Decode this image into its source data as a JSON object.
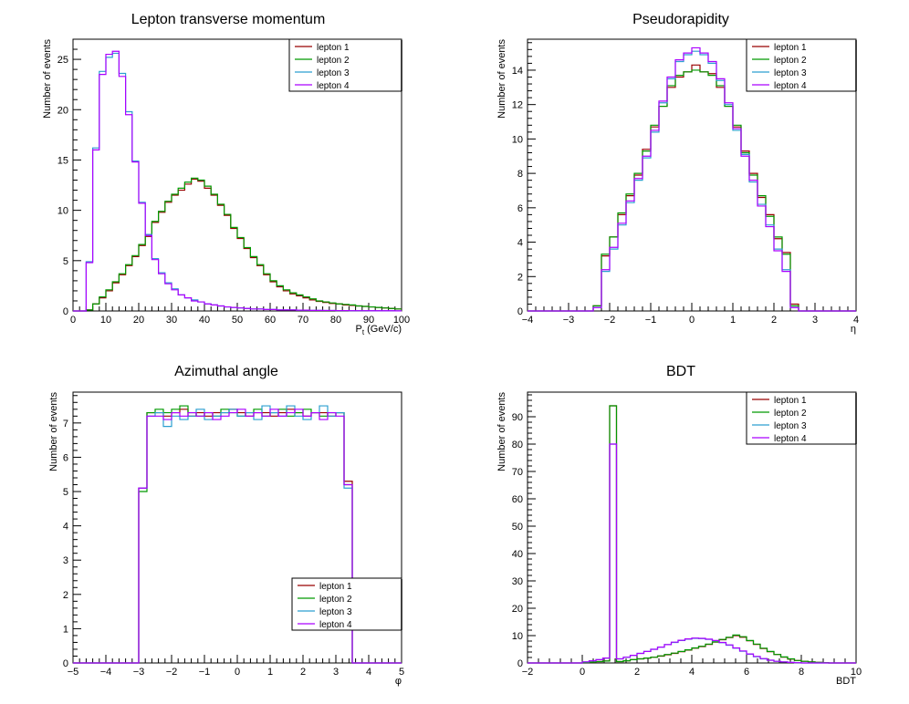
{
  "colors": {
    "lepton_1": "#990000",
    "lepton_2": "#009900",
    "lepton_3": "#2c9fd0",
    "lepton_4": "#aa00ff"
  },
  "chart_data": [
    {
      "type": "histogram",
      "title": "Lepton transverse momentum",
      "ylabel": "Number of events",
      "xlabel_main": "P",
      "xlabel_sub": "t",
      "xlabel_unit": " (GeV/c)",
      "xlim": [
        0,
        100
      ],
      "ylim": [
        0,
        27
      ],
      "xticks": [
        "0",
        "10",
        "20",
        "30",
        "40",
        "50",
        "60",
        "70",
        "80",
        "90",
        "100"
      ],
      "yticks": [
        "0",
        "5",
        "10",
        "15",
        "20",
        "25"
      ],
      "bin_edges_start": 0,
      "bin_width": 2,
      "legend": {
        "position": "top-right",
        "entries": [
          "lepton 1",
          "lepton 2",
          "lepton 3",
          "lepton 4"
        ]
      },
      "series": [
        {
          "name": "lepton 1",
          "values": [
            0,
            0,
            0.1,
            0.7,
            1.3,
            2.0,
            2.8,
            3.6,
            4.5,
            5.4,
            6.5,
            7.4,
            8.8,
            9.8,
            10.8,
            11.5,
            12.0,
            12.6,
            13.1,
            12.9,
            12.2,
            11.5,
            10.5,
            9.5,
            8.2,
            7.2,
            6.2,
            5.3,
            4.5,
            3.6,
            2.9,
            2.4,
            2.0,
            1.7,
            1.5,
            1.3,
            1.1,
            0.95,
            0.85,
            0.75,
            0.7,
            0.6,
            0.55,
            0.5,
            0.45,
            0.4,
            0.35,
            0.3,
            0.25,
            0.2
          ]
        },
        {
          "name": "lepton 2",
          "values": [
            0,
            0,
            0.1,
            0.7,
            1.4,
            2.1,
            2.9,
            3.7,
            4.6,
            5.5,
            6.6,
            7.6,
            8.9,
            9.9,
            10.9,
            11.6,
            12.2,
            12.8,
            13.2,
            13.0,
            12.4,
            11.6,
            10.6,
            9.6,
            8.3,
            7.3,
            6.3,
            5.4,
            4.6,
            3.7,
            3.0,
            2.5,
            2.1,
            1.8,
            1.6,
            1.4,
            1.2,
            1.0,
            0.9,
            0.8,
            0.7,
            0.65,
            0.6,
            0.5,
            0.45,
            0.4,
            0.35,
            0.3,
            0.25,
            0.2
          ]
        },
        {
          "name": "lepton 3",
          "values": [
            0,
            0,
            4.9,
            16.2,
            23.8,
            25.2,
            25.6,
            23.6,
            19.8,
            14.9,
            10.8,
            7.6,
            5.2,
            3.8,
            2.8,
            2.2,
            1.6,
            1.3,
            1.1,
            0.9,
            0.7,
            0.6,
            0.5,
            0.4,
            0.35,
            0.3,
            0.25,
            0.2,
            0.2,
            0.15,
            0.15,
            0.1,
            0.1,
            0.1,
            0.08,
            0.08,
            0.06,
            0.06,
            0.05,
            0.05,
            0.04,
            0.04,
            0.03,
            0.03,
            0.03,
            0.02,
            0.02,
            0.02,
            0.02,
            0.01
          ]
        },
        {
          "name": "lepton 4",
          "values": [
            0,
            0,
            4.8,
            16.0,
            23.5,
            25.5,
            25.8,
            23.3,
            19.5,
            14.8,
            10.7,
            7.5,
            5.1,
            3.7,
            2.7,
            2.1,
            1.6,
            1.3,
            1.0,
            0.9,
            0.7,
            0.6,
            0.5,
            0.4,
            0.35,
            0.3,
            0.25,
            0.2,
            0.2,
            0.15,
            0.15,
            0.1,
            0.1,
            0.1,
            0.08,
            0.08,
            0.06,
            0.06,
            0.05,
            0.05,
            0.04,
            0.04,
            0.03,
            0.03,
            0.03,
            0.02,
            0.02,
            0.02,
            0.02,
            0.01
          ]
        }
      ]
    },
    {
      "type": "histogram",
      "title": "Pseudorapidity",
      "ylabel": "Number of events",
      "xlabel_main": "η",
      "xlabel_sub": "",
      "xlabel_unit": "",
      "xlim": [
        -4,
        4
      ],
      "ylim": [
        0,
        15.8
      ],
      "xticks": [
        "−4",
        "−3",
        "−2",
        "−1",
        "0",
        "1",
        "2",
        "3",
        "4"
      ],
      "yticks": [
        "0",
        "2",
        "4",
        "6",
        "8",
        "10",
        "12",
        "14"
      ],
      "bin_edges_start": -4,
      "bin_width": 0.2,
      "legend": {
        "position": "top-right",
        "entries": [
          "lepton 1",
          "lepton 2",
          "lepton 3",
          "lepton 4"
        ]
      },
      "series": [
        {
          "name": "lepton 1",
          "values": [
            0,
            0,
            0,
            0,
            0,
            0,
            0,
            0,
            0.3,
            3.2,
            4.3,
            5.6,
            6.7,
            7.9,
            9.4,
            10.7,
            11.9,
            13.0,
            13.6,
            13.9,
            14.3,
            13.9,
            13.8,
            13.0,
            11.9,
            10.7,
            9.3,
            8.0,
            6.6,
            5.6,
            4.2,
            3.4,
            0.4,
            0,
            0,
            0,
            0,
            0,
            0,
            0
          ]
        },
        {
          "name": "lepton 2",
          "values": [
            0,
            0,
            0,
            0,
            0,
            0,
            0,
            0,
            0.3,
            3.3,
            4.3,
            5.7,
            6.8,
            8.0,
            9.3,
            10.8,
            11.9,
            13.1,
            13.7,
            13.9,
            14.0,
            13.9,
            13.7,
            13.1,
            11.9,
            10.8,
            9.2,
            7.9,
            6.7,
            5.5,
            4.3,
            3.3,
            0.3,
            0,
            0,
            0,
            0,
            0,
            0,
            0
          ]
        },
        {
          "name": "lepton 3",
          "values": [
            0,
            0,
            0,
            0,
            0,
            0,
            0,
            0,
            0.2,
            2.3,
            3.6,
            5.0,
            6.3,
            7.6,
            8.9,
            10.4,
            12.1,
            13.5,
            14.5,
            14.9,
            15.1,
            14.9,
            14.4,
            13.4,
            12.0,
            10.5,
            9.1,
            7.5,
            6.2,
            5.0,
            3.6,
            2.4,
            0.2,
            0,
            0,
            0,
            0,
            0,
            0,
            0
          ]
        },
        {
          "name": "lepton 4",
          "values": [
            0,
            0,
            0,
            0,
            0,
            0,
            0,
            0,
            0.2,
            2.4,
            3.7,
            5.1,
            6.4,
            7.7,
            9.0,
            10.5,
            12.2,
            13.6,
            14.6,
            15.0,
            15.3,
            15.0,
            14.5,
            13.5,
            12.1,
            10.6,
            9.0,
            7.6,
            6.1,
            4.9,
            3.5,
            2.3,
            0.2,
            0,
            0,
            0,
            0,
            0,
            0,
            0
          ]
        }
      ]
    },
    {
      "type": "histogram",
      "title": "Azimuthal angle",
      "ylabel": "Number of events",
      "xlabel_main": "φ",
      "xlabel_sub": "",
      "xlabel_unit": "",
      "xlim": [
        -5,
        5
      ],
      "ylim": [
        0,
        7.9
      ],
      "xticks": [
        "−5",
        "−4",
        "−3",
        "−2",
        "−1",
        "0",
        "1",
        "2",
        "3",
        "4",
        "5"
      ],
      "yticks": [
        "0",
        "1",
        "2",
        "3",
        "4",
        "5",
        "6",
        "7"
      ],
      "bin_edges_start": -5,
      "bin_width": 0.25,
      "legend": {
        "position": "bottom-right",
        "entries": [
          "lepton 1",
          "lepton 2",
          "lepton 3",
          "lepton 4"
        ]
      },
      "series": [
        {
          "name": "lepton 1",
          "values": [
            0,
            0,
            0,
            0,
            0,
            0,
            0,
            0,
            5.1,
            7.3,
            7.3,
            7.2,
            7.3,
            7.4,
            7.2,
            7.3,
            7.2,
            7.3,
            7.3,
            7.4,
            7.3,
            7.2,
            7.3,
            7.3,
            7.2,
            7.3,
            7.4,
            7.3,
            7.2,
            7.3,
            7.3,
            7.2,
            7.3,
            5.3,
            0,
            0,
            0,
            0,
            0,
            0
          ]
        },
        {
          "name": "lepton 2",
          "values": [
            0,
            0,
            0,
            0,
            0,
            0,
            0,
            0,
            5.0,
            7.3,
            7.4,
            7.3,
            7.4,
            7.5,
            7.3,
            7.2,
            7.3,
            7.2,
            7.4,
            7.3,
            7.2,
            7.3,
            7.4,
            7.2,
            7.3,
            7.4,
            7.2,
            7.3,
            7.4,
            7.3,
            7.2,
            7.3,
            7.3,
            5.2,
            0,
            0,
            0,
            0,
            0,
            0
          ]
        },
        {
          "name": "lepton 3",
          "values": [
            0,
            0,
            0,
            0,
            0,
            0,
            0,
            0,
            5.1,
            7.2,
            7.3,
            6.9,
            7.2,
            7.1,
            7.2,
            7.4,
            7.1,
            7.2,
            7.3,
            7.4,
            7.2,
            7.3,
            7.1,
            7.5,
            7.3,
            7.2,
            7.5,
            7.2,
            7.1,
            7.3,
            7.5,
            7.2,
            7.3,
            5.1,
            0,
            0,
            0,
            0,
            0,
            0
          ]
        },
        {
          "name": "lepton 4",
          "values": [
            0,
            0,
            0,
            0,
            0,
            0,
            0,
            0,
            5.1,
            7.2,
            7.2,
            7.1,
            7.3,
            7.2,
            7.3,
            7.2,
            7.3,
            7.1,
            7.2,
            7.3,
            7.4,
            7.2,
            7.3,
            7.2,
            7.4,
            7.2,
            7.3,
            7.4,
            7.2,
            7.3,
            7.1,
            7.3,
            7.2,
            5.2,
            0,
            0,
            0,
            0,
            0,
            0
          ]
        }
      ]
    },
    {
      "type": "histogram",
      "title": "BDT",
      "ylabel": "Number of events",
      "xlabel_main": "BDT",
      "xlabel_sub": "",
      "xlabel_unit": "",
      "xlim": [
        -2,
        10
      ],
      "ylim": [
        0,
        99
      ],
      "xticks": [
        "−2",
        "0",
        "2",
        "4",
        "6",
        "8",
        "10"
      ],
      "yticks": [
        "0",
        "10",
        "20",
        "30",
        "40",
        "50",
        "60",
        "70",
        "80",
        "90"
      ],
      "bin_edges_start": -2,
      "bin_width": 0.25,
      "legend": {
        "position": "top-right",
        "entries": [
          "lepton 1",
          "lepton 2",
          "lepton 3",
          "lepton 4"
        ]
      },
      "series": [
        {
          "name": "lepton 1",
          "values": [
            0,
            0,
            0,
            0,
            0,
            0,
            0,
            0,
            0.2,
            0.3,
            0.5,
            0.7,
            94,
            0.5,
            0.8,
            1.2,
            1.5,
            1.8,
            2.1,
            2.5,
            3.0,
            3.5,
            4.1,
            4.7,
            5.4,
            6.0,
            6.8,
            7.6,
            8.5,
            9.3,
            10.0,
            9.4,
            8.1,
            6.8,
            5.3,
            4.1,
            3.1,
            2.1,
            1.4,
            0.9,
            0.6,
            0.4,
            0.2,
            0.1,
            0,
            0,
            0,
            0
          ]
        },
        {
          "name": "lepton 2",
          "values": [
            0,
            0,
            0,
            0,
            0,
            0,
            0,
            0,
            0.2,
            0.3,
            0.5,
            0.7,
            94,
            0.5,
            0.8,
            1.2,
            1.5,
            1.8,
            2.1,
            2.6,
            3.1,
            3.6,
            4.2,
            4.8,
            5.5,
            6.1,
            6.9,
            7.7,
            8.6,
            9.4,
            10.2,
            9.6,
            8.2,
            6.9,
            5.4,
            4.2,
            3.1,
            2.2,
            1.5,
            0.9,
            0.6,
            0.4,
            0.2,
            0.1,
            0,
            0,
            0,
            0
          ]
        },
        {
          "name": "lepton 3",
          "values": [
            0,
            0,
            0,
            0,
            0,
            0,
            0,
            0,
            0.4,
            0.8,
            1.2,
            1.8,
            80,
            1.5,
            2.1,
            2.8,
            3.5,
            4.2,
            5.0,
            5.8,
            6.7,
            7.5,
            8.2,
            8.7,
            9.0,
            8.9,
            8.6,
            8.1,
            7.4,
            6.5,
            5.4,
            4.3,
            3.2,
            2.3,
            1.5,
            1.0,
            0.6,
            0.4,
            0.2,
            0.1,
            0,
            0,
            0,
            0,
            0,
            0,
            0,
            0
          ]
        },
        {
          "name": "lepton 4",
          "values": [
            0,
            0,
            0,
            0,
            0,
            0,
            0,
            0,
            0.4,
            0.8,
            1.2,
            1.8,
            80,
            1.5,
            2.1,
            2.8,
            3.5,
            4.2,
            5.0,
            5.8,
            6.7,
            7.6,
            8.3,
            8.8,
            9.1,
            9.0,
            8.7,
            8.2,
            7.5,
            6.6,
            5.5,
            4.4,
            3.3,
            2.4,
            1.6,
            1.0,
            0.6,
            0.4,
            0.2,
            0.1,
            0,
            0,
            0,
            0,
            0,
            0,
            0,
            0
          ]
        }
      ]
    }
  ]
}
